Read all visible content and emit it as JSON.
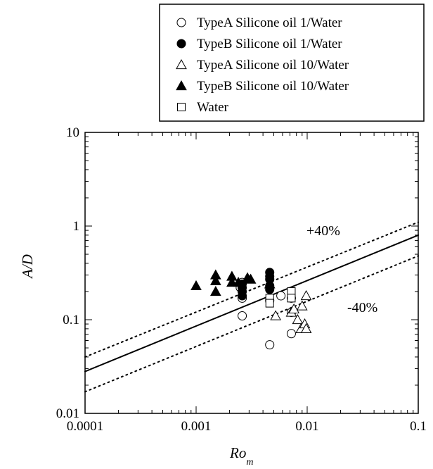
{
  "chart_data": {
    "type": "scatter",
    "xscale": "log",
    "yscale": "log",
    "xlim": [
      0.0001,
      0.1
    ],
    "ylim": [
      0.01,
      10
    ],
    "xticks": [
      "0.0001",
      "0.001",
      "0.01",
      "0.1"
    ],
    "yticks": [
      "0.01",
      "0.1",
      "1",
      "10"
    ],
    "xlabel": "Ro",
    "xlabel_subscript": "m",
    "ylabel": "A/D",
    "grid": false,
    "legend_position": "top-right, outside plot",
    "series": [
      {
        "name": "TypeA Silicone oil 1/Water",
        "marker": "open-circle",
        "points": [
          [
            0.0026,
            0.25
          ],
          [
            0.0026,
            0.17
          ],
          [
            0.0026,
            0.11
          ],
          [
            0.0046,
            0.16
          ],
          [
            0.0046,
            0.054
          ],
          [
            0.0058,
            0.18
          ],
          [
            0.0072,
            0.12
          ],
          [
            0.0072,
            0.071
          ],
          [
            0.0072,
            0.17
          ],
          [
            0.0025,
            0.22
          ]
        ]
      },
      {
        "name": "TypeB Silicone oil 1/Water",
        "marker": "filled-circle",
        "points": [
          [
            0.0026,
            0.18
          ],
          [
            0.0026,
            0.2
          ],
          [
            0.0026,
            0.22
          ],
          [
            0.0026,
            0.24
          ],
          [
            0.0046,
            0.32
          ],
          [
            0.0046,
            0.29
          ],
          [
            0.0046,
            0.27
          ],
          [
            0.0046,
            0.23
          ],
          [
            0.0046,
            0.21
          ]
        ]
      },
      {
        "name": "TypeA Silicone oil 10/Water",
        "marker": "open-triangle",
        "points": [
          [
            0.0072,
            0.12
          ],
          [
            0.0076,
            0.13
          ],
          [
            0.0082,
            0.1
          ],
          [
            0.0088,
            0.08
          ],
          [
            0.009,
            0.14
          ],
          [
            0.0095,
            0.09
          ],
          [
            0.0098,
            0.08
          ],
          [
            0.0052,
            0.11
          ],
          [
            0.0098,
            0.18
          ]
        ]
      },
      {
        "name": "TypeB Silicone oil 10/Water",
        "marker": "filled-triangle",
        "points": [
          [
            0.001,
            0.23
          ],
          [
            0.0015,
            0.3
          ],
          [
            0.0015,
            0.26
          ],
          [
            0.0015,
            0.2
          ],
          [
            0.0021,
            0.29
          ],
          [
            0.0021,
            0.25
          ],
          [
            0.0024,
            0.25
          ],
          [
            0.0029,
            0.28
          ],
          [
            0.0031,
            0.27
          ],
          [
            0.0046,
            0.24
          ]
        ]
      },
      {
        "name": "Water",
        "marker": "open-square",
        "points": [
          [
            0.0046,
            0.17
          ],
          [
            0.0072,
            0.2
          ],
          [
            0.0072,
            0.17
          ],
          [
            0.0046,
            0.15
          ]
        ]
      }
    ],
    "fit_lines": [
      {
        "style": "solid",
        "y_at_xmin": 0.028,
        "y_at_xmax": 0.8
      },
      {
        "style": "dotted",
        "label": "+40%",
        "y_at_xmin": 0.04,
        "y_at_xmax": 1.1
      },
      {
        "style": "dotted",
        "label": "-40%",
        "y_at_xmin": 0.017,
        "y_at_xmax": 0.48
      }
    ],
    "annotations": [
      "+40%",
      "-40%"
    ]
  }
}
